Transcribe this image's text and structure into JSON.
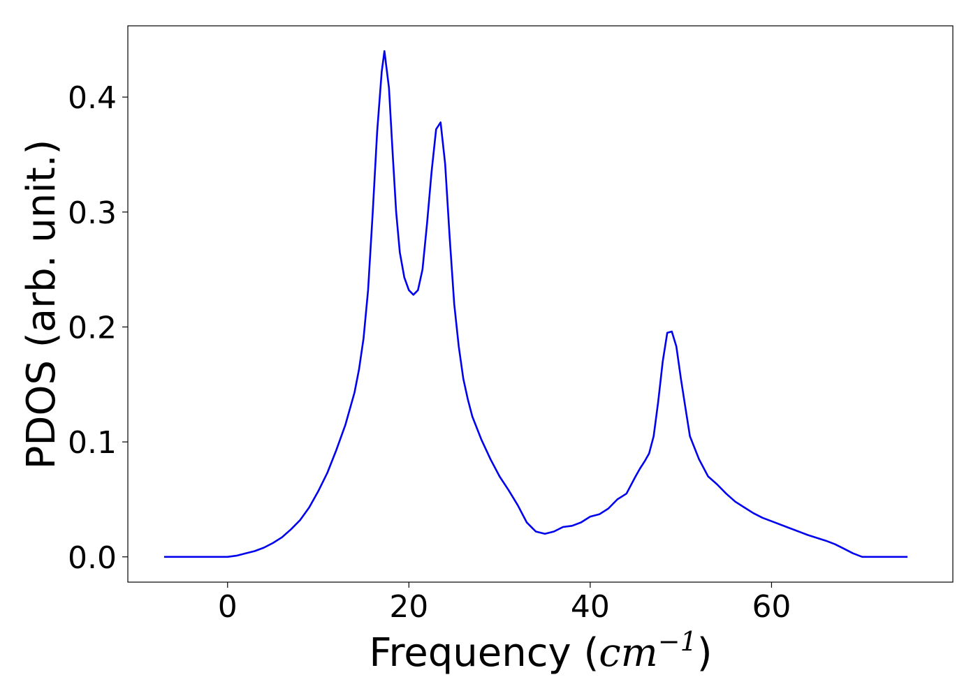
{
  "chart_data": {
    "type": "line",
    "title": "",
    "xlabel": {
      "prefix": "Frequency (",
      "math_base": "cm",
      "math_exp": "−1",
      "suffix": ")"
    },
    "ylabel": "PDOS (arb. unit.)",
    "xlim": [
      -11,
      80
    ],
    "ylim": [
      -0.022,
      0.462
    ],
    "xticks": [
      0,
      20,
      40,
      60
    ],
    "xtick_labels": [
      "0",
      "20",
      "40",
      "60"
    ],
    "yticks": [
      0.0,
      0.1,
      0.2,
      0.3,
      0.4
    ],
    "ytick_labels": [
      "0.0",
      "0.1",
      "0.2",
      "0.3",
      "0.4"
    ],
    "grid": false,
    "legend": "none",
    "series": [
      {
        "color": "#0000ee",
        "x": [
          -7,
          -4,
          -2,
          0,
          1,
          2,
          3,
          4,
          5,
          6,
          7,
          8,
          9,
          10,
          11,
          12,
          13,
          14,
          14.5,
          15,
          15.5,
          16,
          16.5,
          17,
          17.3,
          17.8,
          18.2,
          18.6,
          19.0,
          19.5,
          20.0,
          20.5,
          21.0,
          21.5,
          22.0,
          22.5,
          23.0,
          23.5,
          24.0,
          24.5,
          25.0,
          25.5,
          26.0,
          26.5,
          27.0,
          28.0,
          29.0,
          30.0,
          31.0,
          32.0,
          33.0,
          34.0,
          35.0,
          36.0,
          37.0,
          38.0,
          39.0,
          40.0,
          41.0,
          42.0,
          43.0,
          44.0,
          45.0,
          45.5,
          46.0,
          46.5,
          47.0,
          47.5,
          48.0,
          48.5,
          49.0,
          49.5,
          50.0,
          50.5,
          51.0,
          52.0,
          53.0,
          54.0,
          55.0,
          56.0,
          57.0,
          58.0,
          59.0,
          60.0,
          62.0,
          64.0,
          66.0,
          67.0,
          68.0,
          69.0,
          70.0,
          72.0,
          75.0
        ],
        "y": [
          0.0,
          0.0,
          0.0,
          0.0,
          0.001,
          0.003,
          0.005,
          0.008,
          0.012,
          0.017,
          0.024,
          0.032,
          0.043,
          0.057,
          0.073,
          0.093,
          0.115,
          0.143,
          0.163,
          0.19,
          0.232,
          0.298,
          0.37,
          0.422,
          0.44,
          0.408,
          0.352,
          0.3,
          0.265,
          0.243,
          0.232,
          0.228,
          0.232,
          0.25,
          0.29,
          0.335,
          0.372,
          0.378,
          0.342,
          0.278,
          0.22,
          0.183,
          0.155,
          0.137,
          0.122,
          0.102,
          0.085,
          0.07,
          0.058,
          0.045,
          0.03,
          0.022,
          0.02,
          0.022,
          0.026,
          0.027,
          0.03,
          0.035,
          0.037,
          0.042,
          0.05,
          0.055,
          0.07,
          0.077,
          0.083,
          0.09,
          0.105,
          0.135,
          0.17,
          0.195,
          0.196,
          0.183,
          0.155,
          0.13,
          0.105,
          0.085,
          0.07,
          0.063,
          0.055,
          0.048,
          0.043,
          0.038,
          0.034,
          0.031,
          0.025,
          0.019,
          0.014,
          0.011,
          0.007,
          0.003,
          0.0,
          0.0,
          0.0
        ]
      }
    ]
  }
}
